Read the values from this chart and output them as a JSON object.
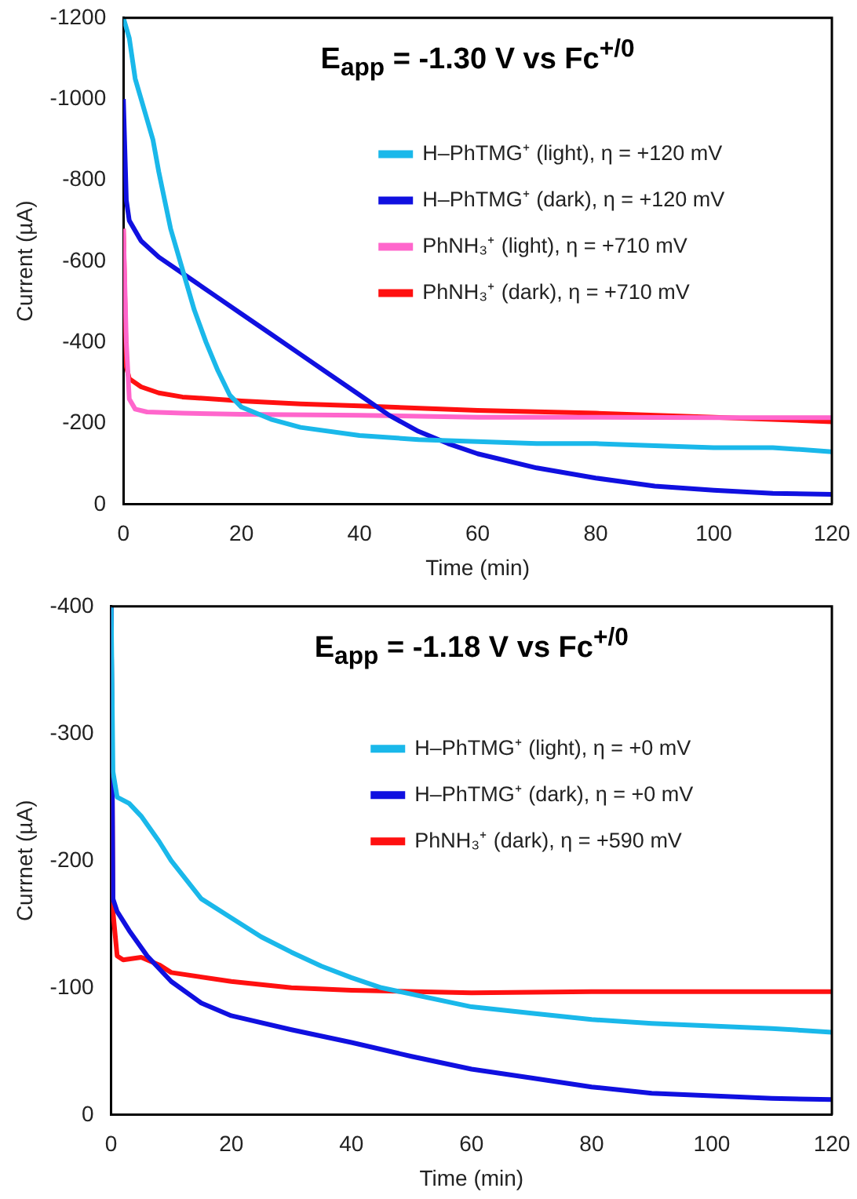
{
  "chart_data": [
    {
      "type": "line",
      "title": "E$_{app}$ = -1.30 V vs Fc$^{+/0}$",
      "xlabel": "Time (min)",
      "ylabel": "Current (µA)",
      "xlim": [
        0,
        120
      ],
      "xticks": [
        0,
        20,
        40,
        60,
        80,
        100,
        120
      ],
      "ylim": [
        0,
        -1200
      ],
      "yticks": [
        0,
        -200,
        -400,
        -600,
        -800,
        -1000,
        -1200
      ],
      "grid": false,
      "legend": "top right",
      "marker": "none",
      "line_style": "solid",
      "series": [
        {
          "name": "H–PhTMG⁺ (light), η = +120 mV",
          "color": "#1ab8ea",
          "x": [
            0,
            1,
            2,
            3,
            4,
            5,
            6,
            7,
            8,
            10,
            12,
            14,
            16,
            18,
            20,
            25,
            30,
            40,
            50,
            60,
            70,
            80,
            90,
            100,
            110,
            120
          ],
          "values": [
            -1200,
            -1150,
            -1050,
            -1000,
            -950,
            -900,
            -820,
            -750,
            -680,
            -580,
            -480,
            -400,
            -330,
            -270,
            -240,
            -210,
            -190,
            -170,
            -160,
            -155,
            -150,
            -150,
            -145,
            -140,
            -140,
            -130
          ]
        },
        {
          "name": "H–PhTMG⁺ (dark), η = +120 mV",
          "color": "#1010e0",
          "x": [
            0,
            0.5,
            1,
            3,
            6,
            10,
            15,
            20,
            25,
            30,
            35,
            40,
            45,
            50,
            55,
            60,
            70,
            80,
            90,
            100,
            110,
            120
          ],
          "values": [
            -1000,
            -750,
            -700,
            -650,
            -610,
            -570,
            -520,
            -470,
            -420,
            -370,
            -320,
            -270,
            -220,
            -180,
            -150,
            -125,
            -90,
            -65,
            -45,
            -35,
            -27,
            -25
          ]
        },
        {
          "name": "PhNH₃⁺ (light), η = +710 mV",
          "color": "#ff66cc",
          "x": [
            0,
            0.5,
            1,
            2,
            4,
            10,
            20,
            40,
            60,
            80,
            100,
            120
          ],
          "values": [
            -680,
            -400,
            -260,
            -235,
            -228,
            -225,
            -222,
            -220,
            -215,
            -215,
            -214,
            -214
          ]
        },
        {
          "name": "PhNH₃⁺ (dark), η = +710 mV",
          "color": "#ff1010",
          "x": [
            0,
            0.5,
            1,
            3,
            6,
            10,
            20,
            30,
            40,
            60,
            80,
            100,
            120
          ],
          "values": [
            -680,
            -340,
            -310,
            -290,
            -275,
            -265,
            -255,
            -248,
            -243,
            -232,
            -225,
            -215,
            -204
          ]
        }
      ]
    },
    {
      "type": "line",
      "title": "E$_{app}$ = -1.18 V vs Fc$^{+/0}$",
      "xlabel": "Time (min)",
      "ylabel": "Currnet (µA)",
      "xlim": [
        0,
        120
      ],
      "xticks": [
        0,
        20,
        40,
        60,
        80,
        100,
        120
      ],
      "ylim": [
        0,
        -400
      ],
      "yticks": [
        0,
        -100,
        -200,
        -300,
        -400
      ],
      "grid": false,
      "legend": "top right",
      "marker": "none",
      "line_style": "solid",
      "series": [
        {
          "name": "H–PhTMG⁺ (light), η = +0 mV",
          "color": "#1ab8ea",
          "x": [
            0,
            0.3,
            1,
            3,
            5,
            8,
            10,
            15,
            20,
            25,
            30,
            35,
            40,
            45,
            50,
            60,
            70,
            80,
            90,
            100,
            110,
            120
          ],
          "values": [
            -400,
            -270,
            -250,
            -245,
            -235,
            -215,
            -200,
            -170,
            -155,
            -140,
            -128,
            -117,
            -108,
            -100,
            -95,
            -85,
            -80,
            -75,
            -72,
            -70,
            -68,
            -65
          ]
        },
        {
          "name": "H–PhTMG⁺ (dark), η = +0 mV",
          "color": "#1010e0",
          "x": [
            0,
            0.3,
            1,
            3,
            6,
            10,
            15,
            20,
            30,
            40,
            50,
            60,
            70,
            80,
            90,
            100,
            110,
            120
          ],
          "values": [
            -400,
            -170,
            -160,
            -145,
            -125,
            -105,
            -88,
            -78,
            -67,
            -57,
            -46,
            -36,
            -29,
            -22,
            -17,
            -15,
            -13,
            -12
          ]
        },
        {
          "name": "PhNH₃⁺ (dark), η = +590 mV",
          "color": "#ff1010",
          "x": [
            0,
            0.3,
            1,
            2,
            5,
            8,
            10,
            20,
            30,
            40,
            60,
            80,
            120
          ],
          "values": [
            -400,
            -160,
            -125,
            -122,
            -124,
            -118,
            -112,
            -105,
            -100,
            -98,
            -96,
            -97,
            -97
          ]
        }
      ]
    }
  ]
}
